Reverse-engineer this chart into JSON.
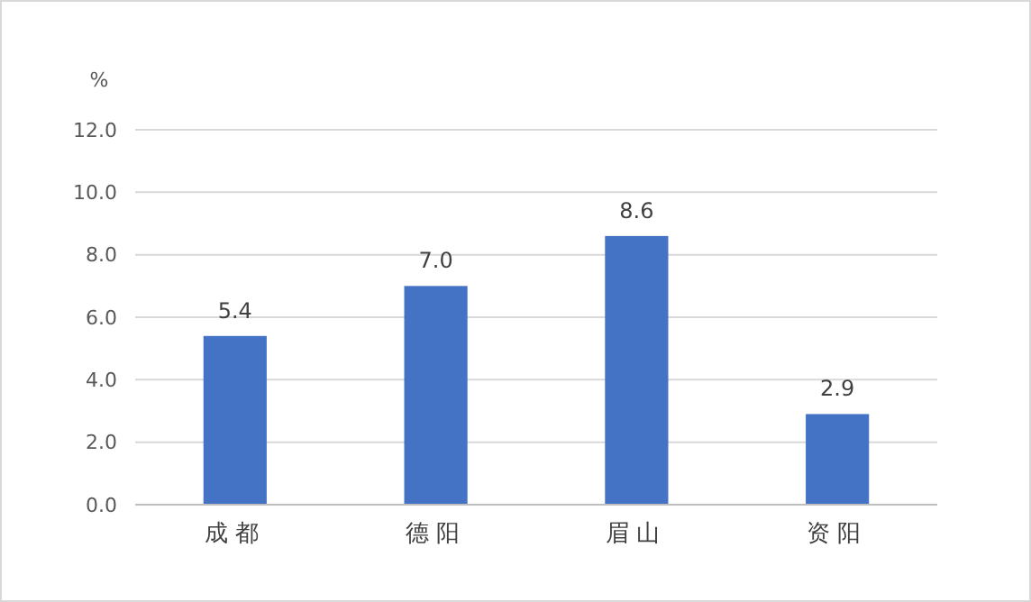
{
  "chart_data": {
    "type": "bar",
    "ylabel": "%",
    "categories": [
      "成都",
      "德阳",
      "眉山",
      "资阳"
    ],
    "values": [
      5.4,
      7.0,
      8.6,
      2.9
    ],
    "value_labels": [
      "5.4",
      "7.0",
      "8.6",
      "2.9"
    ],
    "color": "#4472c4",
    "ylim": [
      0,
      12
    ],
    "yticks": [
      {
        "value": 0,
        "label": "0.0"
      },
      {
        "value": 2,
        "label": "2.0"
      },
      {
        "value": 4,
        "label": "4.0"
      },
      {
        "value": 6,
        "label": "6.0"
      },
      {
        "value": 8,
        "label": "8.0"
      },
      {
        "value": 10,
        "label": "10.0"
      },
      {
        "value": 12,
        "label": "12.0"
      }
    ],
    "grid": "y"
  }
}
